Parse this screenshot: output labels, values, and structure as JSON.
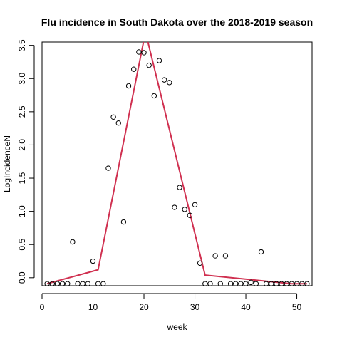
{
  "chart_data": {
    "type": "scatter",
    "title": "Flu incidence in South Dakota over the 2018-2019 season",
    "xlabel": "week",
    "ylabel": "LogIncidenceN",
    "xlim": [
      0,
      53
    ],
    "ylim": [
      -0.12,
      3.55
    ],
    "x_ticks": [
      "0",
      "10",
      "20",
      "30",
      "40",
      "50"
    ],
    "x_tick_values": [
      0,
      10,
      20,
      30,
      40,
      50
    ],
    "y_ticks": [
      "0.0",
      "0.5",
      "1.0",
      "1.5",
      "2.0",
      "2.5",
      "3.0",
      "3.5"
    ],
    "y_tick_values": [
      0.0,
      0.5,
      1.0,
      1.5,
      2.0,
      2.5,
      3.0,
      3.5
    ],
    "grid": false,
    "series": [
      {
        "kind": "points",
        "marker": "open-circle",
        "color": "#000000",
        "x": [
          1,
          2,
          3,
          4,
          5,
          6,
          7,
          8,
          9,
          10,
          11,
          12,
          13,
          14,
          15,
          16,
          17,
          18,
          19,
          20,
          21,
          22,
          23,
          24,
          25,
          26,
          27,
          28,
          29,
          30,
          31,
          32,
          33,
          34,
          35,
          36,
          37,
          38,
          39,
          40,
          41,
          42,
          43,
          44,
          45,
          46,
          47,
          48,
          49,
          50,
          51,
          52
        ],
        "y": [
          -0.09,
          -0.09,
          -0.09,
          -0.09,
          -0.09,
          0.54,
          -0.09,
          -0.09,
          -0.09,
          0.25,
          -0.09,
          -0.09,
          1.65,
          2.42,
          2.33,
          0.84,
          2.89,
          3.14,
          3.4,
          3.39,
          3.2,
          2.74,
          3.27,
          2.98,
          2.94,
          1.06,
          1.36,
          1.03,
          0.94,
          1.1,
          0.22,
          -0.09,
          -0.09,
          0.33,
          -0.09,
          0.33,
          -0.09,
          -0.09,
          -0.09,
          -0.09,
          -0.07,
          -0.09,
          0.39,
          -0.09,
          -0.09,
          -0.09,
          -0.09,
          -0.09,
          -0.09,
          -0.09,
          -0.09,
          -0.09
        ]
      },
      {
        "kind": "line",
        "color": "#d03050",
        "x": [
          1,
          11,
          20.3,
          32,
          49,
          52
        ],
        "y": [
          -0.09,
          0.12,
          3.7,
          0.04,
          -0.09,
          -0.09
        ]
      }
    ]
  }
}
